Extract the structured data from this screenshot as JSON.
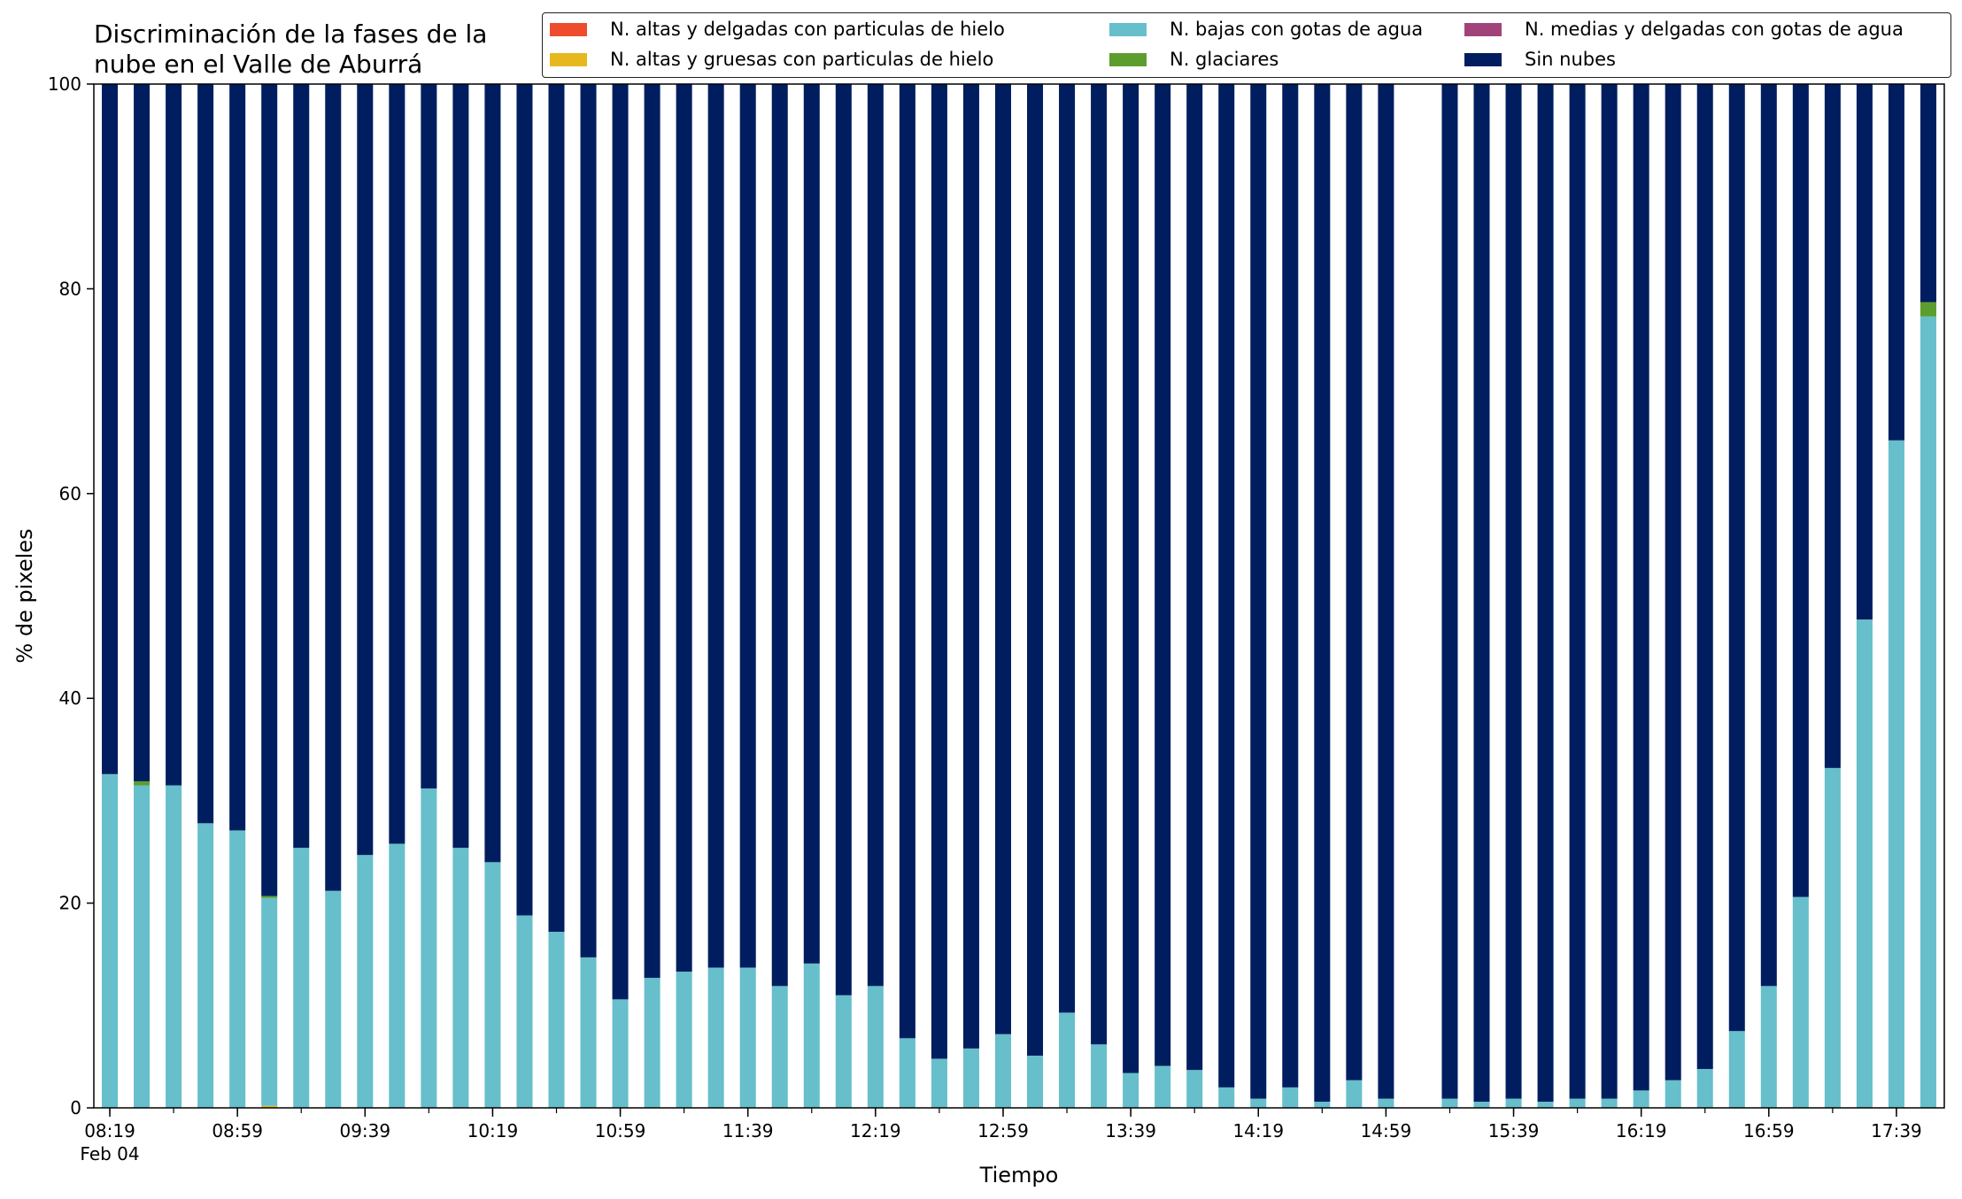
{
  "chart_data": {
    "type": "bar",
    "stacked": true,
    "title_lines": [
      "Discriminación de la fases de la",
      "nube en el Valle de Aburrá"
    ],
    "xlabel": "Tiempo",
    "ylabel": "% de pixeles",
    "ylim": [
      0,
      100
    ],
    "yticks": [
      0,
      20,
      40,
      60,
      80,
      100
    ],
    "grid": false,
    "legend_position": "top",
    "x_tick_labels": [
      "08:19",
      "08:59",
      "09:39",
      "10:19",
      "10:59",
      "11:39",
      "12:19",
      "12:59",
      "13:39",
      "14:19",
      "14:59",
      "15:39",
      "16:19",
      "16:59",
      "17:39"
    ],
    "x_sublabel": "Feb 04",
    "categories": [
      "08:19",
      "08:29",
      "08:39",
      "08:49",
      "08:59",
      "09:09",
      "09:19",
      "09:29",
      "09:39",
      "09:49",
      "09:59",
      "10:09",
      "10:19",
      "10:29",
      "10:39",
      "10:49",
      "10:59",
      "11:09",
      "11:19",
      "11:29",
      "11:39",
      "11:49",
      "11:59",
      "12:09",
      "12:19",
      "12:29",
      "12:39",
      "12:49",
      "12:59",
      "13:09",
      "13:19",
      "13:29",
      "13:39",
      "13:49",
      "13:59",
      "14:09",
      "14:19",
      "14:29",
      "14:39",
      "14:49",
      "14:59",
      "15:09",
      "15:19",
      "15:29",
      "15:39",
      "15:49",
      "15:59",
      "16:09",
      "16:19",
      "16:29",
      "16:39",
      "16:49",
      "16:59",
      "17:09",
      "17:19",
      "17:29",
      "17:39",
      "17:49"
    ],
    "series": [
      {
        "name": "N. altas y delgadas con particulas de hielo",
        "color": "#ee4c2c",
        "values": [
          0,
          0,
          0,
          0,
          0,
          0,
          0,
          0,
          0,
          0,
          0,
          0,
          0,
          0,
          0,
          0,
          0,
          0,
          0,
          0,
          0,
          0,
          0,
          0,
          0,
          0,
          0,
          0,
          0,
          0,
          0,
          0,
          0,
          0,
          0,
          0,
          0,
          0,
          0,
          0,
          0,
          null,
          0,
          0,
          0,
          0,
          0,
          0,
          0,
          0,
          0,
          0,
          0,
          0,
          0,
          0,
          0,
          0
        ]
      },
      {
        "name": "N. altas y gruesas con particulas de hielo",
        "color": "#e6b81e",
        "values": [
          0,
          0,
          0,
          0,
          0,
          0.2,
          0,
          0,
          0,
          0,
          0,
          0,
          0,
          0,
          0,
          0,
          0,
          0,
          0,
          0,
          0,
          0,
          0,
          0,
          0,
          0,
          0,
          0,
          0,
          0,
          0,
          0,
          0,
          0,
          0,
          0,
          0,
          0,
          0,
          0,
          0,
          null,
          0,
          0,
          0,
          0,
          0,
          0,
          0,
          0,
          0,
          0,
          0,
          0,
          0,
          0,
          0,
          0
        ]
      },
      {
        "name": "N. medias y delgadas con gotas de agua",
        "color": "#a1437a",
        "values": [
          0,
          0,
          0,
          0,
          0,
          0,
          0,
          0,
          0,
          0,
          0,
          0,
          0,
          0,
          0,
          0,
          0,
          0,
          0,
          0,
          0,
          0,
          0,
          0,
          0,
          0,
          0,
          0,
          0,
          0,
          0,
          0,
          0,
          0,
          0,
          0,
          0,
          0,
          0,
          0,
          0,
          null,
          0,
          0,
          0,
          0,
          0,
          0,
          0,
          0,
          0,
          0,
          0,
          0,
          0,
          0,
          0,
          0
        ]
      },
      {
        "name": "N. bajas con gotas de agua",
        "color": "#66bfcb",
        "values": [
          32.6,
          31.5,
          31.5,
          27.8,
          27.1,
          20.3,
          25.4,
          21.2,
          24.7,
          25.8,
          31.2,
          25.4,
          24.0,
          18.8,
          17.2,
          14.7,
          10.6,
          12.7,
          13.3,
          13.7,
          13.7,
          11.9,
          14.1,
          11.0,
          11.9,
          6.8,
          4.8,
          5.8,
          7.2,
          5.1,
          9.3,
          6.2,
          3.4,
          4.1,
          3.7,
          2.0,
          0.9,
          2.0,
          0.6,
          2.7,
          0.9,
          null,
          0.9,
          0.6,
          0.9,
          0.6,
          0.9,
          0.9,
          1.7,
          2.7,
          3.8,
          7.5,
          11.9,
          20.6,
          33.2,
          47.7,
          65.2,
          77.3
        ]
      },
      {
        "name": "N. glaciares",
        "color": "#5c9e2e",
        "values": [
          0,
          0.4,
          0,
          0,
          0,
          0.2,
          0,
          0,
          0,
          0,
          0,
          0,
          0,
          0,
          0,
          0,
          0,
          0,
          0,
          0,
          0,
          0,
          0,
          0,
          0,
          0,
          0,
          0,
          0,
          0,
          0,
          0,
          0,
          0,
          0,
          0,
          0,
          0,
          0,
          0,
          0,
          null,
          0,
          0,
          0,
          0,
          0,
          0,
          0,
          0,
          0,
          0,
          0,
          0,
          0,
          0,
          0,
          1.4
        ]
      },
      {
        "name": "Sin nubes",
        "color": "#001e5f",
        "values": [
          67.4,
          68.1,
          68.5,
          72.2,
          72.9,
          79.3,
          74.6,
          78.8,
          75.3,
          74.2,
          68.8,
          74.6,
          76.0,
          81.2,
          82.8,
          85.3,
          89.4,
          87.3,
          86.7,
          86.3,
          86.3,
          88.1,
          85.9,
          89.0,
          88.1,
          93.2,
          95.2,
          94.2,
          92.8,
          94.9,
          90.7,
          93.8,
          96.6,
          95.9,
          96.3,
          98.0,
          99.1,
          98.0,
          99.4,
          97.3,
          99.1,
          null,
          99.1,
          99.4,
          99.1,
          99.4,
          99.1,
          99.1,
          98.3,
          97.3,
          96.2,
          92.5,
          88.1,
          79.4,
          66.8,
          52.3,
          34.8,
          21.3
        ]
      }
    ],
    "legend_entries": [
      {
        "label": "N. altas y delgadas con particulas de hielo",
        "color": "#ee4c2c"
      },
      {
        "label": "N. altas y gruesas con particulas de hielo",
        "color": "#e6b81e"
      },
      {
        "label": "N. bajas con gotas de agua",
        "color": "#66bfcb"
      },
      {
        "label": "N. glaciares",
        "color": "#5c9e2e"
      },
      {
        "label": "N. medias y delgadas con gotas de agua",
        "color": "#a1437a"
      },
      {
        "label": "Sin nubes",
        "color": "#001e5f"
      }
    ]
  }
}
